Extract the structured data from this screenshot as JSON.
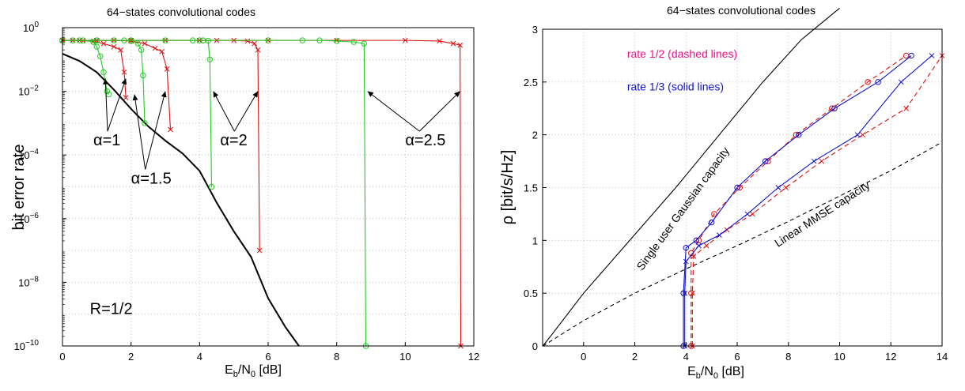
{
  "chart_data": [
    {
      "type": "line",
      "title": "64−states convolutional codes",
      "xlabel": "E_b/N_0 [dB]",
      "xlabel_main": "E",
      "xlabel_sub1": "b",
      "xlabel_mid": "/N",
      "xlabel_sub2": "0",
      "xlabel_tail": " [dB]",
      "ylabel": "bit error rate",
      "xlim": [
        0,
        12
      ],
      "ylim_exp": [
        -10,
        0
      ],
      "y_scale": "log",
      "grid": true,
      "xticks": [
        "0",
        "2",
        "4",
        "6",
        "8",
        "10",
        "12"
      ],
      "yticks": [
        {
          "base": "10",
          "exp": "0"
        },
        {
          "base": "10",
          "exp": "−2"
        },
        {
          "base": "10",
          "exp": "−4"
        },
        {
          "base": "10",
          "exp": "−6"
        },
        {
          "base": "10",
          "exp": "−8"
        },
        {
          "base": "10",
          "exp": "−10"
        }
      ],
      "annotations": [
        {
          "text": "α=1",
          "x": 0.9,
          "ylog": -3.7,
          "arrows": [
            [
              1.25,
              -1.6
            ],
            [
              1.85,
              -1.6
            ]
          ]
        },
        {
          "text": "α=1.5",
          "x": 2.0,
          "ylog": -4.9,
          "arrows": [
            [
              2.1,
              -2.1
            ],
            [
              3.0,
              -2.0
            ]
          ]
        },
        {
          "text": "α=2",
          "x": 4.6,
          "ylog": -3.7,
          "arrows": [
            [
              4.4,
              -2.0
            ],
            [
              5.7,
              -2.0
            ]
          ]
        },
        {
          "text": "α=2.5",
          "x": 10.0,
          "ylog": -3.7,
          "arrows": [
            [
              8.9,
              -2.0
            ],
            [
              11.6,
              -2.0
            ]
          ]
        },
        {
          "text": "R=1/2",
          "x": 0.8,
          "ylog": -9.0,
          "arrows": []
        }
      ],
      "series": [
        {
          "color": "#000000",
          "marker": "none",
          "x": [
            0,
            0.5,
            1,
            1.5,
            2,
            2.5,
            3,
            3.5,
            4,
            4.5,
            5,
            5.5,
            6,
            6.5,
            6.9
          ],
          "ylog": [
            -0.82,
            -1.05,
            -1.4,
            -1.95,
            -2.55,
            -3.1,
            -3.55,
            -3.95,
            -4.5,
            -5.5,
            -6.4,
            -7.2,
            -8.5,
            -9.4,
            -10
          ]
        },
        {
          "color": "#dd1111",
          "marker": "x",
          "x": [
            0,
            0.3,
            0.6,
            0.9,
            1.2,
            1.5,
            1.7,
            1.8,
            1.85
          ],
          "ylog": [
            -0.4,
            -0.4,
            -0.41,
            -0.43,
            -0.5,
            -0.6,
            -0.7,
            -1.4,
            -2.2
          ]
        },
        {
          "color": "#22cc22",
          "marker": "o",
          "x": [
            0,
            0.3,
            0.6,
            0.9,
            1.0,
            1.1,
            1.2,
            1.3,
            1.35
          ],
          "ylog": [
            -0.4,
            -0.4,
            -0.4,
            -0.45,
            -0.6,
            -0.9,
            -1.4,
            -2.0,
            -2.1
          ]
        },
        {
          "color": "#dd1111",
          "marker": "x",
          "x": [
            0,
            0.5,
            1,
            1.5,
            2,
            2.4,
            2.7,
            2.9,
            3.05,
            3.15
          ],
          "ylog": [
            -0.4,
            -0.4,
            -0.4,
            -0.4,
            -0.42,
            -0.5,
            -0.65,
            -0.75,
            -1.3,
            -3.2
          ]
        },
        {
          "color": "#22cc22",
          "marker": "o",
          "x": [
            0,
            0.5,
            1,
            1.5,
            1.8,
            2.0,
            2.2,
            2.3,
            2.35,
            2.4
          ],
          "ylog": [
            -0.4,
            -0.4,
            -0.4,
            -0.4,
            -0.4,
            -0.42,
            -0.5,
            -0.7,
            -1.5,
            -3.0
          ]
        },
        {
          "color": "#dd1111",
          "marker": "x",
          "x": [
            0,
            1,
            2,
            3,
            4,
            4.5,
            5,
            5.4,
            5.6,
            5.7,
            5.75
          ],
          "ylog": [
            -0.4,
            -0.4,
            -0.4,
            -0.4,
            -0.4,
            -0.4,
            -0.4,
            -0.42,
            -0.5,
            -0.7,
            -7.0
          ]
        },
        {
          "color": "#22cc22",
          "marker": "o",
          "x": [
            0,
            1,
            2,
            3,
            3.8,
            4.1,
            4.25,
            4.3,
            4.35
          ],
          "ylog": [
            -0.4,
            -0.4,
            -0.4,
            -0.4,
            -0.4,
            -0.4,
            -0.41,
            -1.0,
            -5.0
          ]
        },
        {
          "color": "#dd1111",
          "marker": "x",
          "x": [
            0,
            2,
            4,
            6,
            8,
            10,
            11,
            11.4,
            11.6,
            11.62
          ],
          "ylog": [
            -0.4,
            -0.4,
            -0.4,
            -0.4,
            -0.4,
            -0.4,
            -0.42,
            -0.5,
            -0.55,
            -10
          ]
        },
        {
          "color": "#22cc22",
          "marker": "o",
          "x": [
            0,
            2,
            4,
            6,
            7,
            7.5,
            8,
            8.5,
            8.8,
            8.85
          ],
          "ylog": [
            -0.4,
            -0.4,
            -0.4,
            -0.4,
            -0.4,
            -0.4,
            -0.42,
            -0.45,
            -0.5,
            -10
          ]
        }
      ]
    },
    {
      "type": "line",
      "title": "64−states convolutional codes",
      "xlabel": "E_b/N_0 [dB]",
      "xlabel_main": "E",
      "xlabel_sub1": "b",
      "xlabel_mid": "/N",
      "xlabel_sub2": "0",
      "xlabel_tail": " [dB]",
      "ylabel": "ρ [bit/s/Hz]",
      "xlim": [
        -1.6,
        14
      ],
      "ylim": [
        0,
        3
      ],
      "grid": true,
      "xticks": [
        "0",
        "2",
        "4",
        "6",
        "8",
        "10",
        "12",
        "14"
      ],
      "yticks": [
        "0",
        "0.5",
        "1",
        "1.5",
        "2",
        "2.5",
        "3"
      ],
      "legend_notes": [
        {
          "text": "rate 1/2 (dashed lines)",
          "color": "#ee1188",
          "x": 1.7,
          "y": 2.73
        },
        {
          "text": "rate 1/3 (solid lines)",
          "color": "#1111cc",
          "x": 1.7,
          "y": 2.42
        }
      ],
      "annotations": [
        {
          "text": "Single user Gaussian capacity",
          "x": 4.0,
          "y": 1.28,
          "angle": -54
        },
        {
          "text": "Linear MMSE capacity",
          "x": 9.4,
          "y": 1.22,
          "angle": -33
        }
      ],
      "series": [
        {
          "name": "Single user Gaussian capacity",
          "color": "#000000",
          "dash": "none",
          "marker": "none",
          "x": [
            -1.59,
            -1.2,
            0,
            1.8,
            3.6,
            5.3,
            7.0,
            8.5,
            10
          ],
          "y": [
            0,
            0.12,
            0.5,
            1.0,
            1.5,
            2.0,
            2.5,
            2.9,
            3.2
          ]
        },
        {
          "name": "Linear MMSE capacity",
          "color": "#000000",
          "dash": "5,4",
          "marker": "none",
          "x": [
            -1.59,
            0,
            2,
            4,
            6,
            8,
            10,
            12,
            14
          ],
          "y": [
            0,
            0.24,
            0.5,
            0.73,
            0.95,
            1.18,
            1.42,
            1.66,
            1.93
          ]
        },
        {
          "color": "#dd1111",
          "dash": "6,4",
          "marker": "o",
          "x": [
            4.2,
            4.2,
            4.2,
            4.5,
            5.1,
            6.1,
            7.2,
            8.3,
            9.7,
            11.1,
            12.6
          ],
          "y": [
            0,
            0.5,
            0.88,
            1.0,
            1.25,
            1.5,
            1.75,
            2.0,
            2.25,
            2.5,
            2.75
          ]
        },
        {
          "color": "#dd1111",
          "dash": "6,4",
          "marker": "x",
          "x": [
            4.25,
            4.25,
            4.3,
            4.8,
            5.6,
            6.6,
            7.9,
            9.3,
            10.9,
            12.6,
            14.0
          ],
          "y": [
            0,
            0.5,
            0.85,
            0.95,
            1.1,
            1.25,
            1.5,
            1.75,
            2.0,
            2.25,
            2.75
          ]
        },
        {
          "color": "#1111cc",
          "dash": "none",
          "marker": "o",
          "x": [
            3.9,
            3.9,
            4.0,
            4.4,
            5.0,
            6.0,
            7.1,
            8.4,
            9.8,
            11.5,
            12.8
          ],
          "y": [
            0,
            0.5,
            0.93,
            1.0,
            1.17,
            1.5,
            1.75,
            2.0,
            2.25,
            2.5,
            2.75
          ]
        },
        {
          "color": "#1111cc",
          "dash": "none",
          "marker": "x",
          "x": [
            3.95,
            3.95,
            4.0,
            4.5,
            5.3,
            6.4,
            7.6,
            9.0,
            10.7,
            12.4,
            13.6
          ],
          "y": [
            0,
            0.5,
            0.8,
            0.95,
            1.05,
            1.25,
            1.5,
            1.75,
            2.0,
            2.5,
            2.75
          ]
        }
      ]
    }
  ]
}
